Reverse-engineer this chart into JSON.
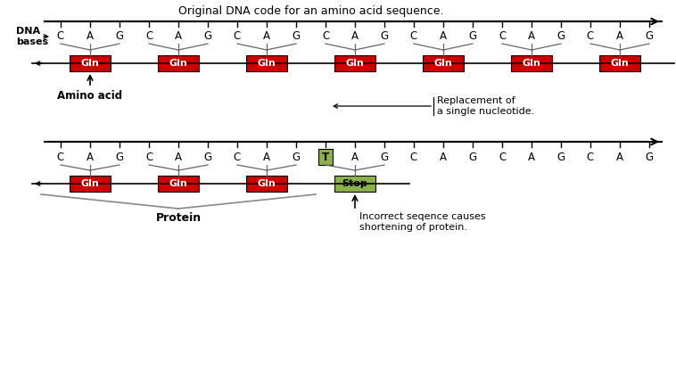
{
  "title1": "Original DNA code for an amino acid sequence.",
  "top_bases": [
    "C",
    "A",
    "G",
    "C",
    "A",
    "G",
    "C",
    "A",
    "G",
    "C",
    "A",
    "G",
    "C",
    "A",
    "G",
    "C",
    "A",
    "G",
    "C",
    "A",
    "G"
  ],
  "top_codons": [
    "Gln",
    "Gln",
    "Gln",
    "Gln",
    "Gln",
    "Gln",
    "Gln"
  ],
  "bottom_bases": [
    "C",
    "A",
    "G",
    "C",
    "A",
    "G",
    "C",
    "A",
    "G",
    "T",
    "A",
    "G",
    "C",
    "A",
    "G",
    "C",
    "A",
    "G",
    "C",
    "A",
    "G"
  ],
  "bottom_codons": [
    "Gln",
    "Gln",
    "Gln",
    "Stop"
  ],
  "bottom_codon_types": [
    "red",
    "red",
    "red",
    "green"
  ],
  "mutated_base_index": 9,
  "red_color": "#CC0000",
  "green_color": "#8DB04E",
  "text_color": "#000000",
  "bg_color": "#FFFFFF",
  "dna_label": "DNA\nbases",
  "amino_acid_label": "Amino acid",
  "protein_label": "Protein",
  "replacement_label": "Replacement of\na single nucleotide.",
  "incorrect_label": "Incorrect seqence causes\nshortening of protein."
}
